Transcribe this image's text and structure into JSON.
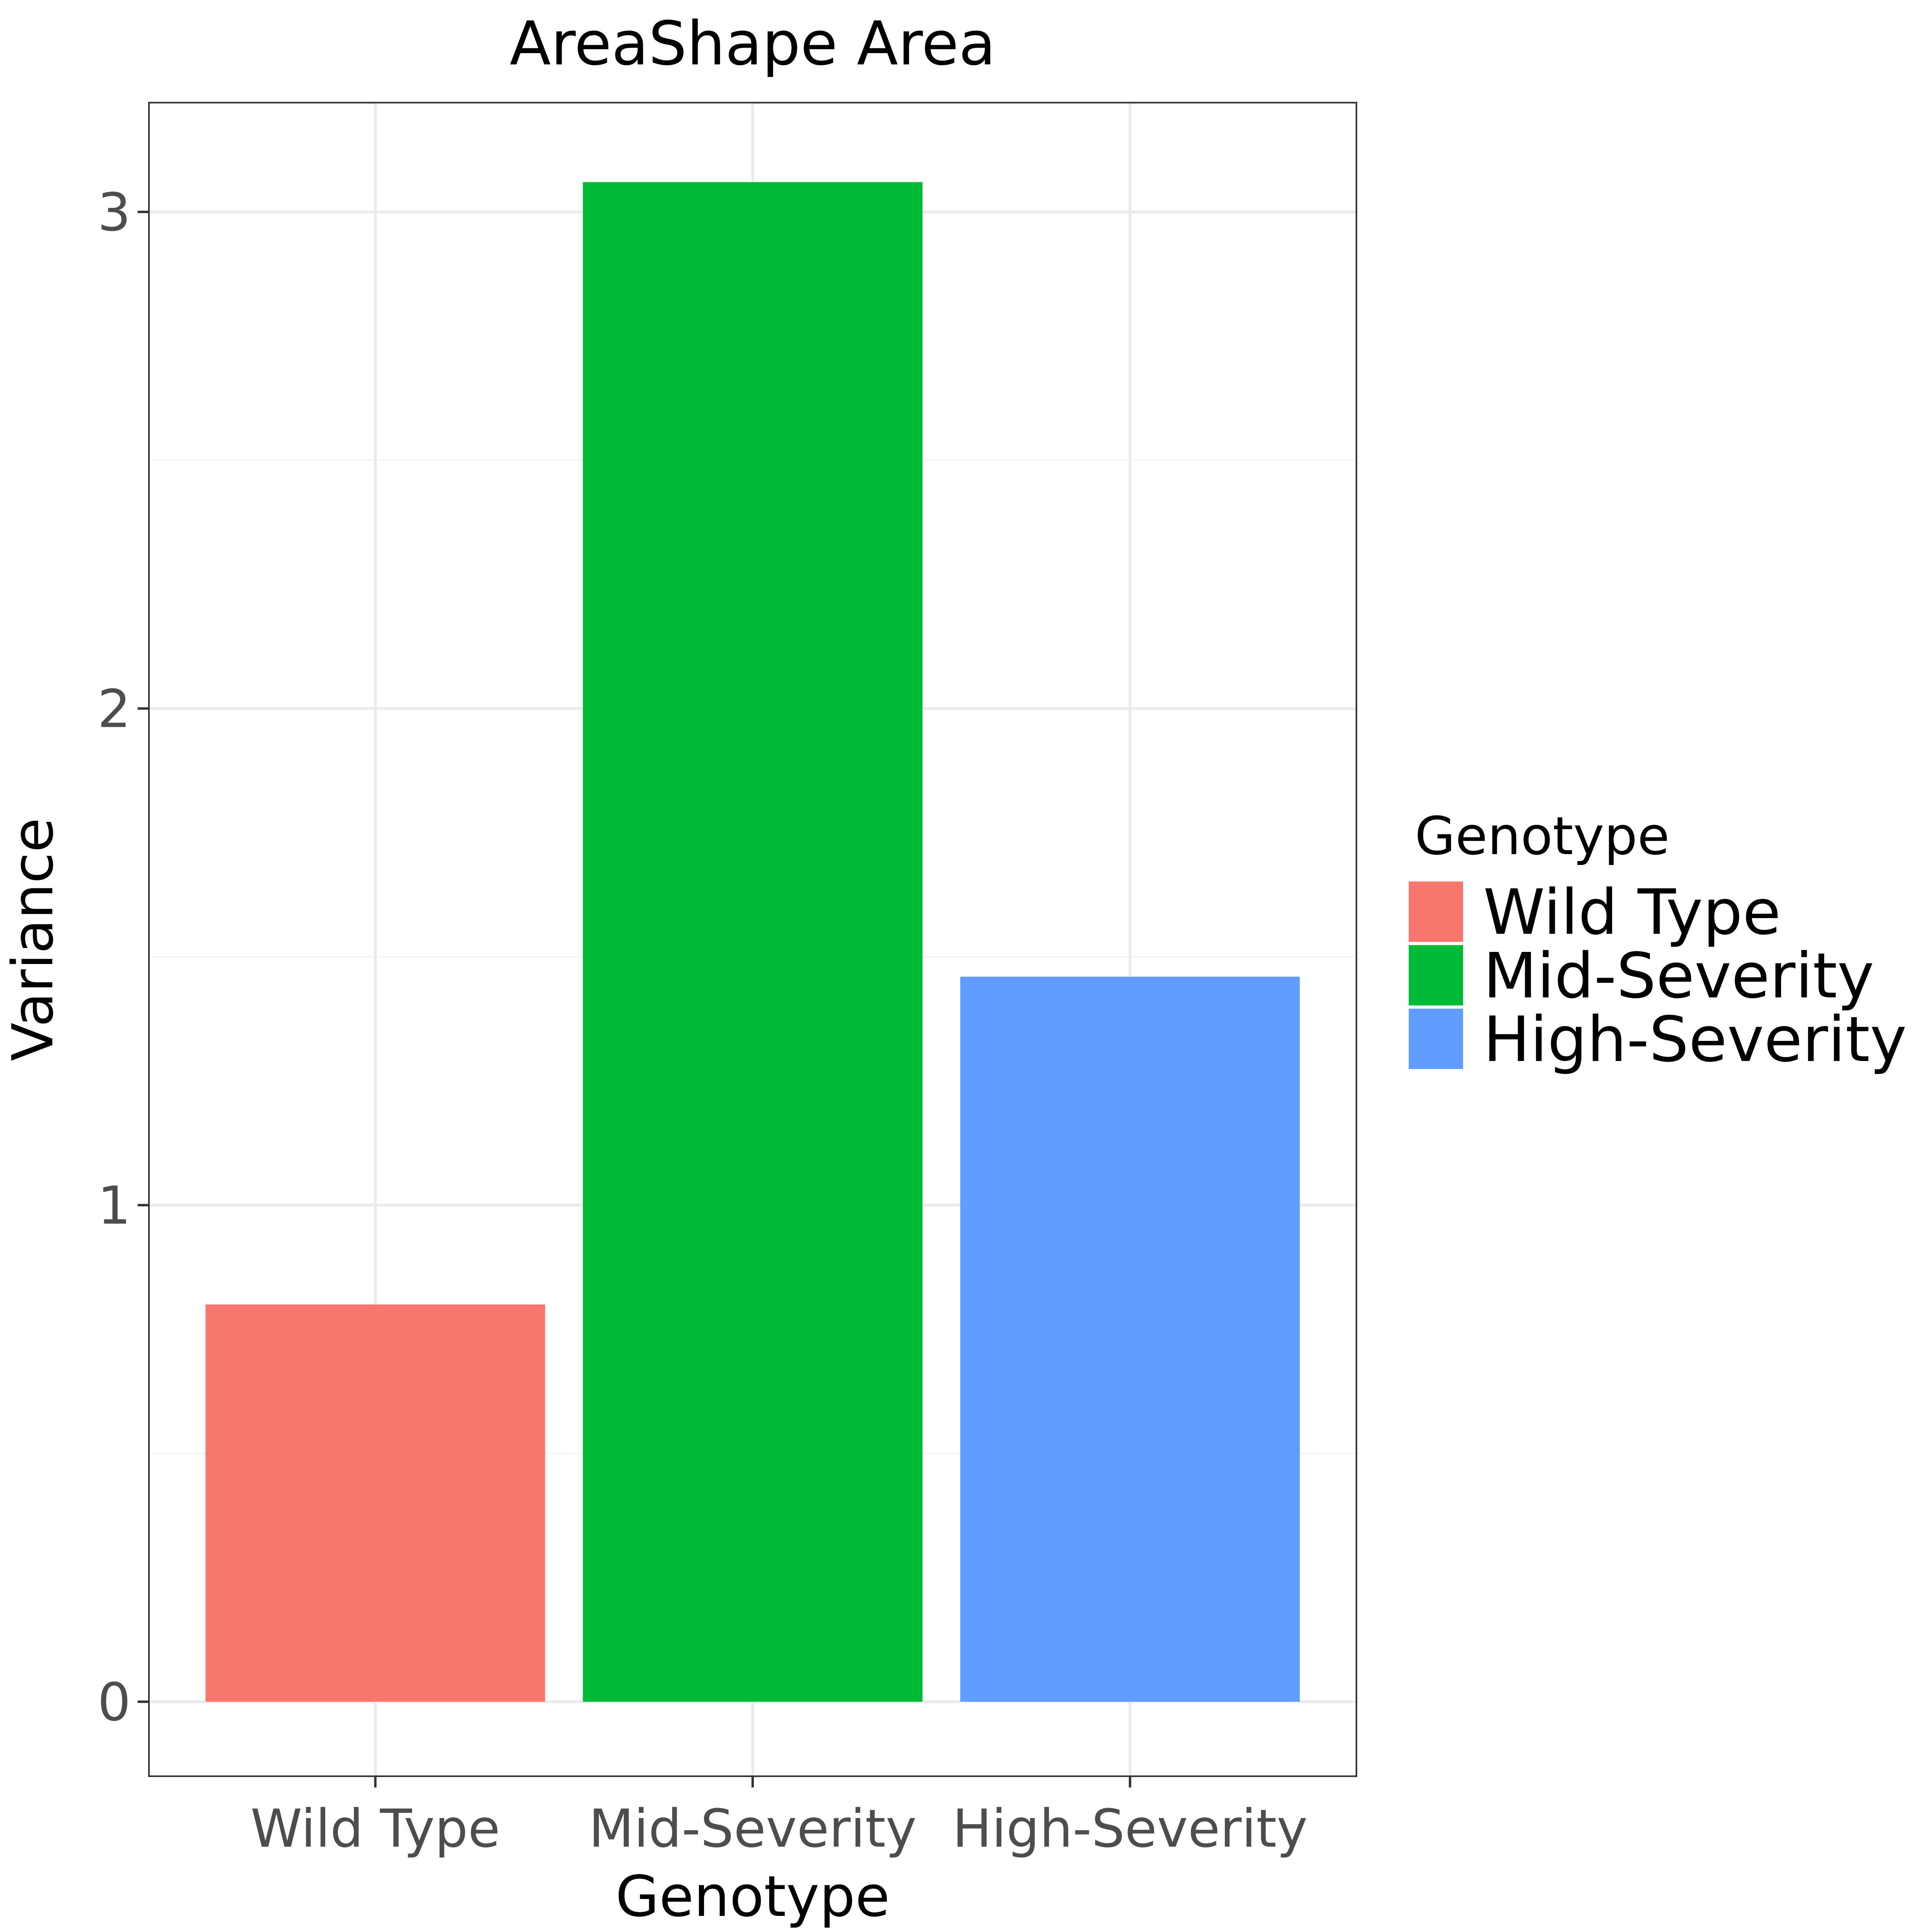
{
  "chart_data": {
    "type": "bar",
    "title": "AreaShape Area",
    "xlabel": "Genotype",
    "ylabel": "Variance",
    "categories": [
      "Wild Type",
      "Mid-Severity",
      "High-Severity"
    ],
    "values": [
      0.8,
      3.06,
      1.46
    ],
    "colors": [
      "#F8766D",
      "#00BA38",
      "#619CFF"
    ],
    "ylim": [
      -0.15,
      3.22
    ],
    "yticks": [
      0,
      1,
      2,
      3
    ],
    "grid": true,
    "legend": {
      "title": "Genotype",
      "placement": "right",
      "entries": [
        "Wild Type",
        "Mid-Severity",
        "High-Severity"
      ]
    }
  }
}
